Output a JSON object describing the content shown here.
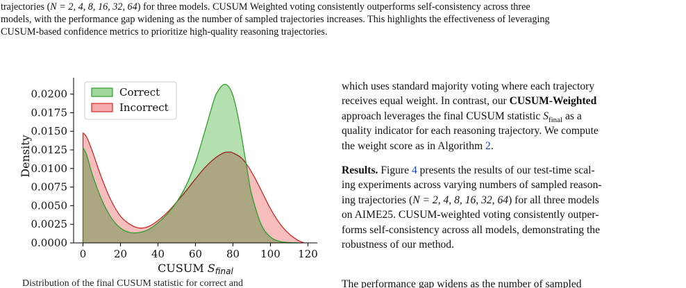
{
  "caption": {
    "line1_before_math": "trajectories (",
    "line1_math": "N = 2, 4, 8, 16, 32, 64",
    "line1_after_math": ") for three models. CUSUM Weighted voting consistently outperforms self-consistency across three",
    "line2": "models, with the performance gap widening as the number of sampled trajectories increases. This highlights the effectiveness of leveraging",
    "line3": "CUSUM-based confidence metrics to prioritize high-quality reasoning trajectories."
  },
  "body_text": {
    "p1_line1": "which uses standard majority voting where each trajectory",
    "p1_line2_a": "receives equal weight. In contrast, our ",
    "p1_line2_bold": "CUSUM-Weighted",
    "p1_line3_a": "approach leverages the final CUSUM statistic ",
    "p1_line3_math_base": "S",
    "p1_line3_math_sub": "final",
    "p1_line3_b": " as a",
    "p1_line4": "quality indicator for each reasoning trajectory. We compute",
    "p1_line5_a": "the weight score as in Algorithm ",
    "p1_line5_link": "2",
    "p1_line5_b": ".",
    "p2_heading": "Results.",
    "p2_line1_a": " Figure ",
    "p2_line1_link": "4",
    "p2_line1_b": " presents the results of our test-time scal-",
    "p2_line2": "ing experiments across varying numbers of sampled reason-",
    "p2_line3_a": "ing trajectories (",
    "p2_line3_math": "N = 2, 4, 8, 16, 32, 64",
    "p2_line3_b": ") for all three models",
    "p2_line4": "on AIME25. CUSUM-weighted voting consistently outper-",
    "p2_line5": "forms self-consistency across all models, demonstrating the",
    "p2_line6": "robustness of our method.",
    "cut_right": "The performance gap widens as the number of sampled",
    "cut_left": "Distribution of the final CUSUM statistic for correct and"
  },
  "chart_data": {
    "type": "area",
    "title": "",
    "xlabel_base": "CUSUM ",
    "xlabel_math_base": "S",
    "xlabel_math_sub": "final",
    "ylabel": "Density",
    "xlim": [
      -5,
      125
    ],
    "ylim": [
      0,
      0.0222
    ],
    "xticks": [
      0,
      20,
      40,
      60,
      80,
      100,
      120
    ],
    "yticks": [
      0.0,
      0.0025,
      0.005,
      0.0075,
      0.01,
      0.0125,
      0.015,
      0.0175,
      0.02
    ],
    "ytick_labels": [
      "0.0000",
      "0.0025",
      "0.0050",
      "0.0075",
      "0.0100",
      "0.0125",
      "0.0150",
      "0.0175",
      "0.0200"
    ],
    "grid": false,
    "legend_position": "top-left",
    "series": [
      {
        "name": "Correct",
        "fill": "#9fd79a",
        "stroke": "#2ca02c",
        "x": [
          0,
          2,
          5,
          10,
          15,
          20,
          25,
          30,
          35,
          40,
          45,
          50,
          55,
          60,
          65,
          70,
          72,
          74,
          76,
          78,
          80,
          82,
          84,
          86,
          88,
          90,
          95,
          100,
          105,
          110,
          115
        ],
        "y": [
          0.0128,
          0.0118,
          0.0092,
          0.0058,
          0.0034,
          0.002,
          0.0014,
          0.0014,
          0.0018,
          0.0027,
          0.0039,
          0.0055,
          0.0077,
          0.0108,
          0.015,
          0.0193,
          0.0204,
          0.0211,
          0.0213,
          0.0209,
          0.0198,
          0.0178,
          0.0152,
          0.0122,
          0.0092,
          0.0065,
          0.0025,
          0.0008,
          0.0002,
          5e-05,
          0.0
        ]
      },
      {
        "name": "Incorrect",
        "fill": "#f4aaaa",
        "stroke": "#d62728",
        "x": [
          0,
          2,
          5,
          10,
          15,
          20,
          25,
          30,
          35,
          40,
          45,
          50,
          55,
          60,
          65,
          70,
          75,
          78,
          80,
          85,
          90,
          95,
          100,
          105,
          110,
          115,
          118
        ],
        "y": [
          0.0148,
          0.0142,
          0.0123,
          0.0087,
          0.0057,
          0.0036,
          0.0025,
          0.002,
          0.0022,
          0.003,
          0.0041,
          0.0055,
          0.007,
          0.0086,
          0.0101,
          0.0113,
          0.0121,
          0.0122,
          0.0121,
          0.0113,
          0.0095,
          0.0071,
          0.0046,
          0.0026,
          0.0012,
          0.0003,
          0.0
        ]
      }
    ]
  }
}
